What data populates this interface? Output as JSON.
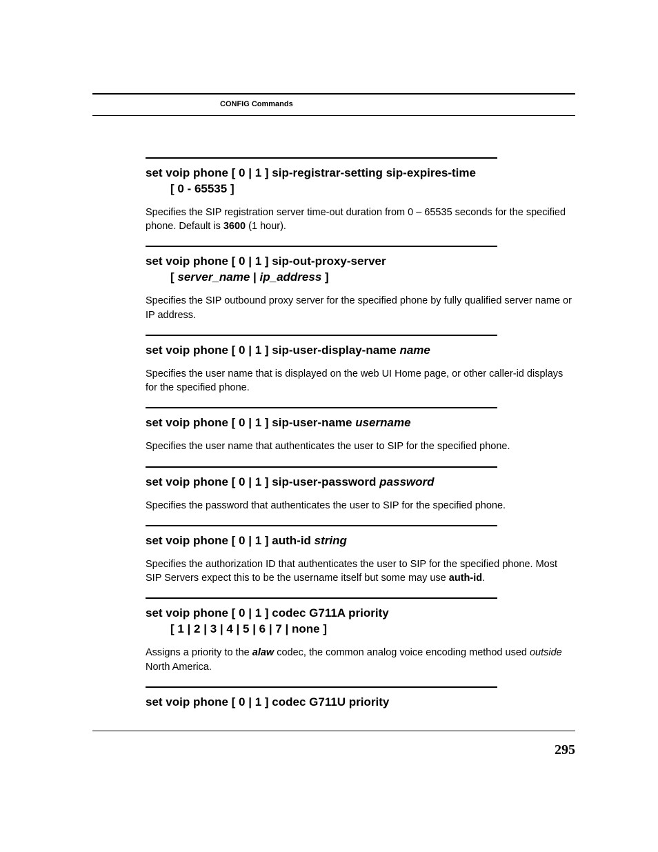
{
  "header": {
    "section_title": "CONFIG Commands"
  },
  "commands": [
    {
      "heading_line1": "set voip phone [ 0 | 1 ] sip-registrar-setting sip-expires-time",
      "heading_line2_prefix": "[ 0 - 65535 ]",
      "heading_line2_em": "",
      "desc_html": "Specifies the SIP registration server time-out duration from 0 – 65535 seconds for the specified phone. Default is <span class=\"bold\">3600</span> (1 hour)."
    },
    {
      "heading_line1": "set voip phone [ 0 | 1 ] sip-out-proxy-server",
      "heading_line2_prefix": "[ ",
      "heading_line2_em": "server_name",
      "heading_line2_mid": " | ",
      "heading_line2_em2": "ip_address",
      "heading_line2_suffix": " ]",
      "desc_html": "Specifies the SIP outbound proxy server for the specified phone by fully qualified server name or IP address."
    },
    {
      "heading_line1_prefix": "set voip phone [ 0 | 1 ] sip-user-display-name ",
      "heading_line1_em": "name",
      "desc_html": "Specifies the user name that is displayed on the web UI Home page, or other caller-id displays for the specified phone."
    },
    {
      "heading_line1_prefix": "set voip phone [ 0 | 1 ] sip-user-name ",
      "heading_line1_em": "username",
      "desc_html": "Specifies the user name that authenticates the user to SIP for the specified phone."
    },
    {
      "heading_line1_prefix": "set voip phone [ 0 | 1 ] sip-user-password ",
      "heading_line1_em": "password",
      "desc_html": "Specifies the password that authenticates the user to SIP for the specified phone."
    },
    {
      "heading_line1_prefix": "set voip phone [ 0 | 1 ] auth-id ",
      "heading_line1_em": "string",
      "desc_html": "Specifies the authorization ID that authenticates the user to SIP for the specified phone. Most SIP Servers expect this to be the username itself but some may use <span class=\"bold\">auth-id</span>."
    },
    {
      "heading_line1": "set voip phone [ 0 | 1 ] codec G711A priority",
      "heading_line2_prefix": "[ 1 | 2 | 3 | 4 | 5 | 6 | 7 | none ]",
      "desc_html": "Assigns a priority to the <span class=\"em\">alaw</span> codec, the common analog voice encoding method used <span class=\"emn\">outside</span> North America."
    },
    {
      "heading_line1": "set voip phone [ 0 | 1 ] codec G711U priority",
      "no_desc": true
    }
  ],
  "page_number": "295"
}
